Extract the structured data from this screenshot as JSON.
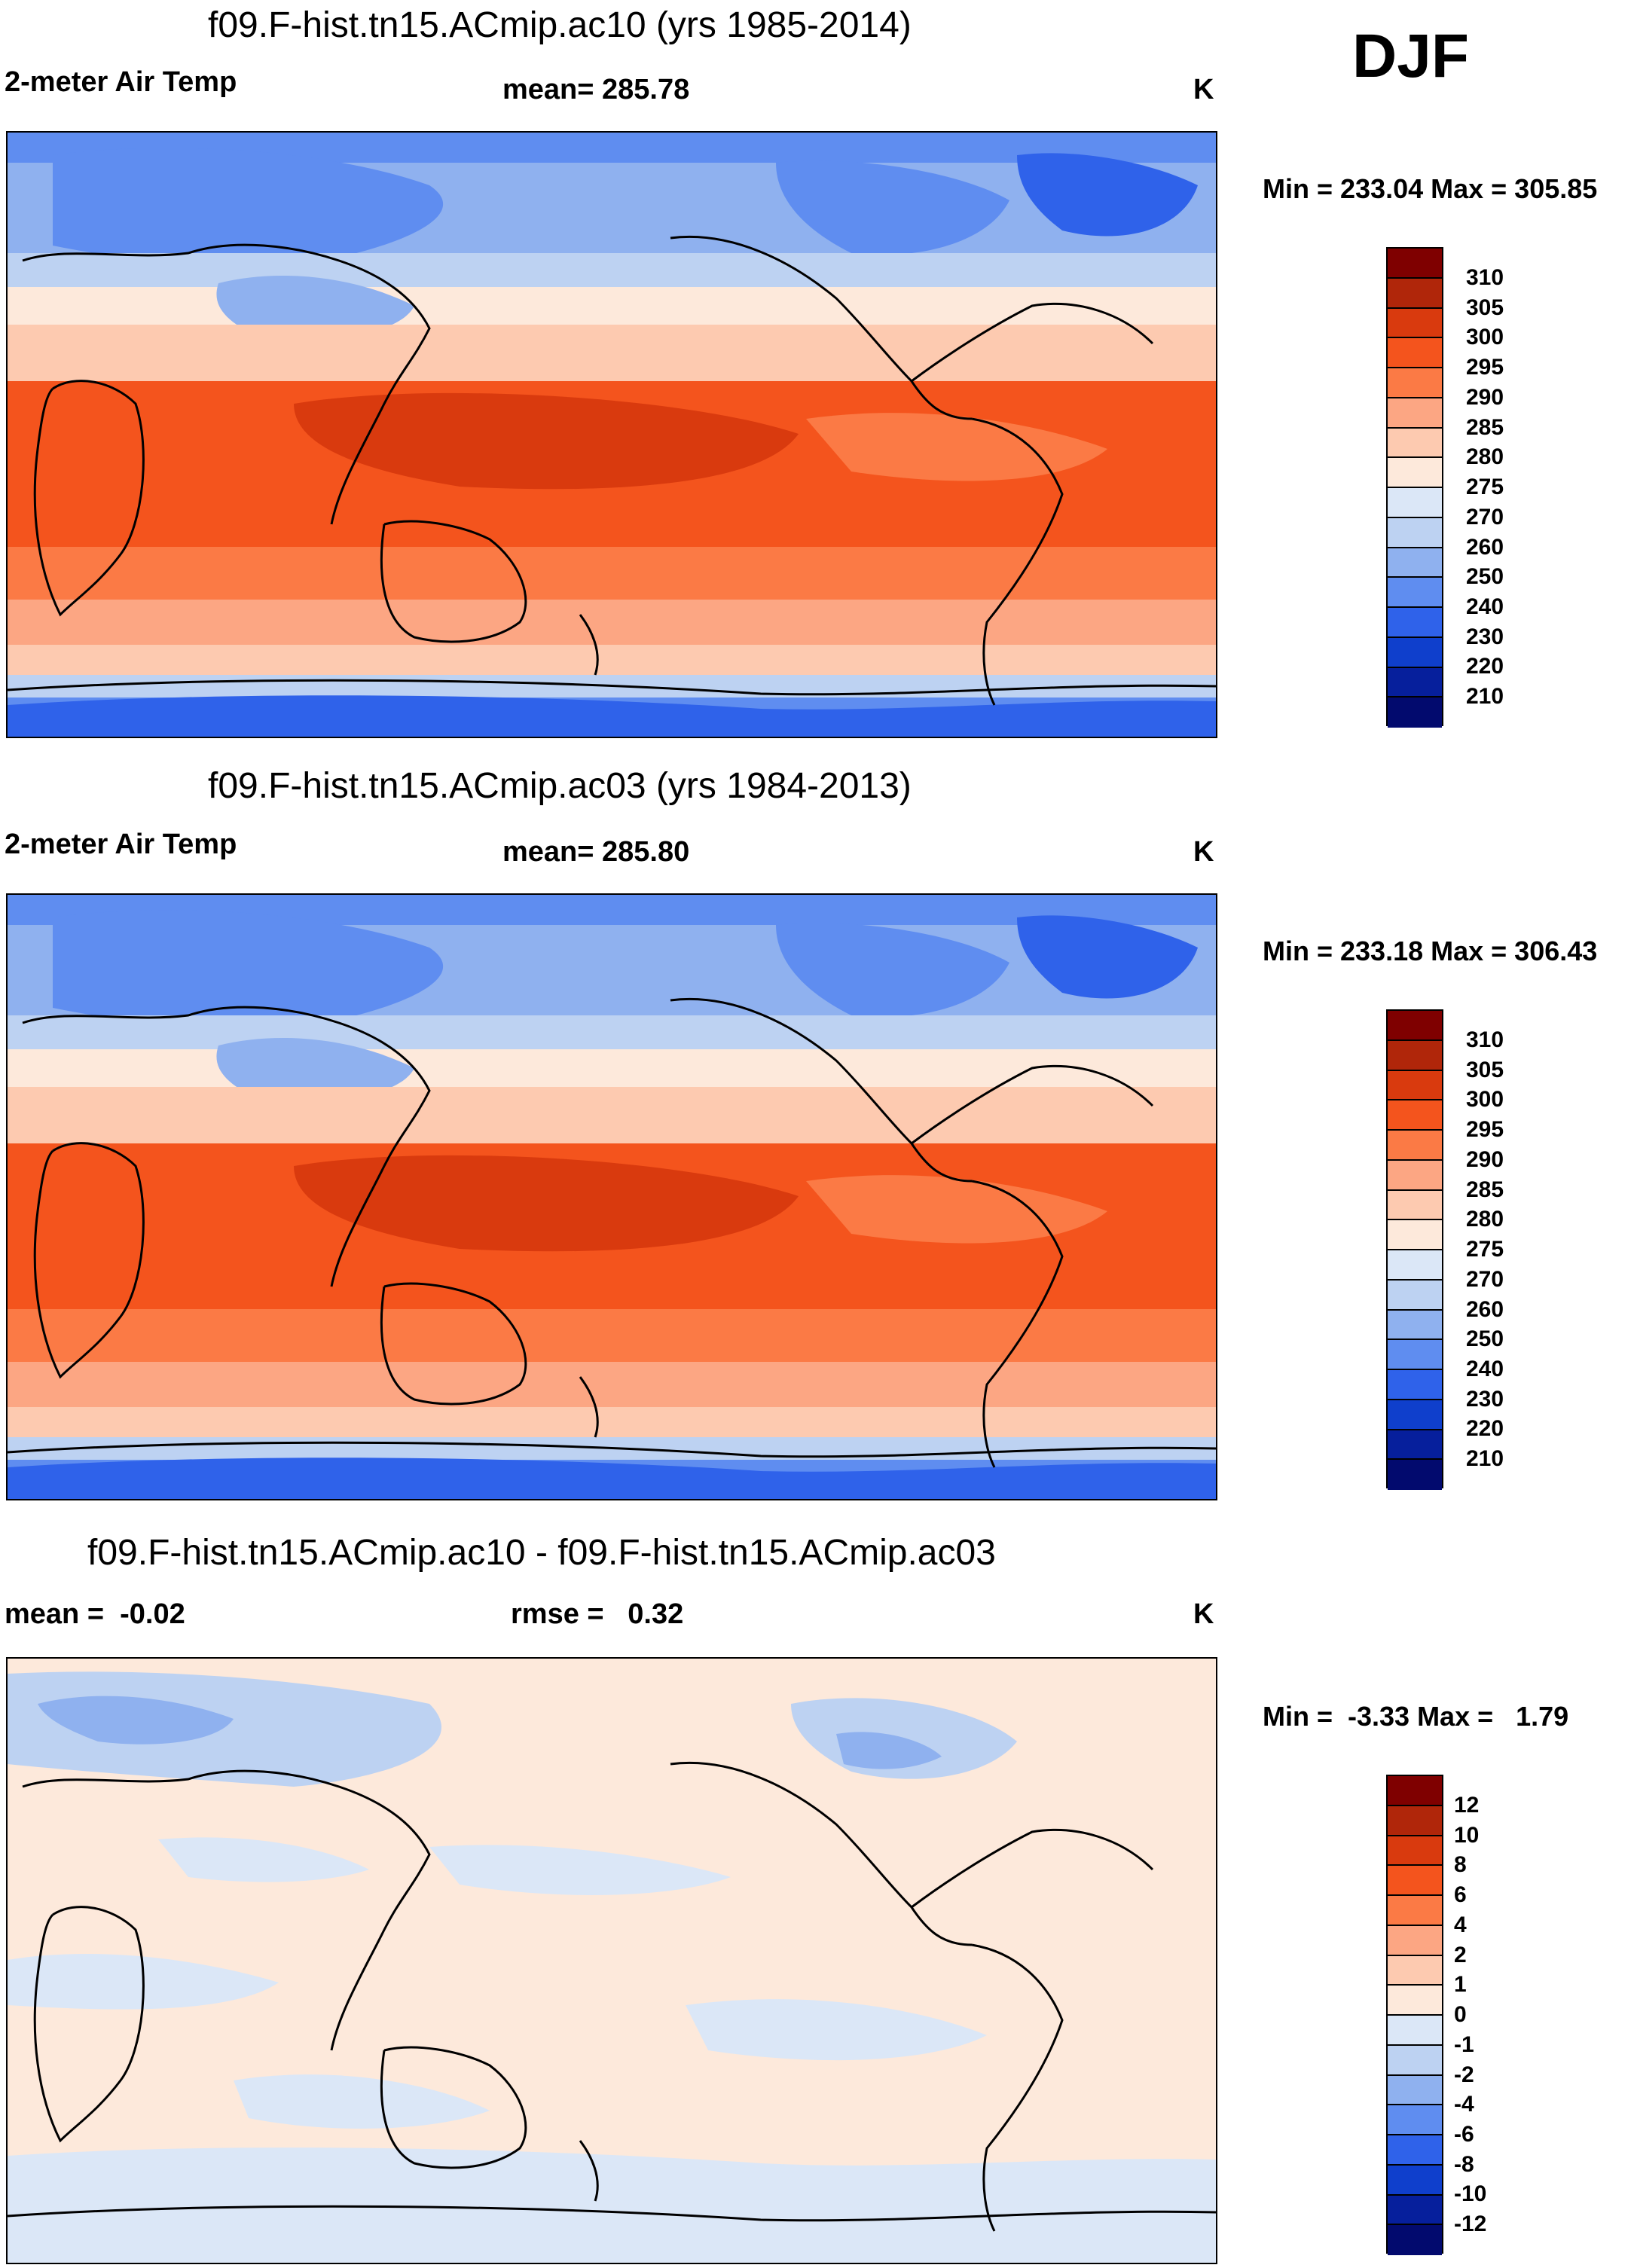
{
  "season": "DJF",
  "panels": [
    {
      "title": "f09.F-hist.tn15.ACmip.ac10 (yrs 1985-2014)",
      "left_label": "2-meter Air Temp",
      "center_label": "mean= 285.78",
      "units": "K",
      "minmax": "Min = 233.04 Max = 305.85",
      "colorbar_labels": [
        "310",
        "305",
        "300",
        "295",
        "290",
        "285",
        "280",
        "275",
        "270",
        "260",
        "250",
        "240",
        "230",
        "220",
        "210"
      ]
    },
    {
      "title": "f09.F-hist.tn15.ACmip.ac03 (yrs 1984-2013)",
      "left_label": "2-meter Air Temp",
      "center_label": "mean= 285.80",
      "units": "K",
      "minmax": "Min = 233.18 Max = 306.43",
      "colorbar_labels": [
        "310",
        "305",
        "300",
        "295",
        "290",
        "285",
        "280",
        "275",
        "270",
        "260",
        "250",
        "240",
        "230",
        "220",
        "210"
      ]
    },
    {
      "title": "f09.F-hist.tn15.ACmip.ac10 - f09.F-hist.tn15.ACmip.ac03",
      "left_label": "mean =  -0.02",
      "center_label": "rmse =   0.32",
      "units": "K",
      "minmax": "Min =  -3.33 Max =   1.79",
      "colorbar_labels": [
        "12",
        "10",
        "8",
        "6",
        "4",
        "2",
        "1",
        "0",
        "-1",
        "-2",
        "-4",
        "-6",
        "-8",
        "-10",
        "-12"
      ]
    }
  ],
  "colors": {
    "absolute_scale": [
      "#7f0000",
      "#b0260a",
      "#d93a0e",
      "#f4541d",
      "#fb7a45",
      "#fca683",
      "#fdcab0",
      "#fde9db",
      "#dbe7f7",
      "#bdd2f2",
      "#8fb1ef",
      "#5f8df0",
      "#2f62ea",
      "#0f3fcc",
      "#061f9c",
      "#020a6e"
    ],
    "difference_scale": [
      "#7f0000",
      "#b0260a",
      "#d93a0e",
      "#f4541d",
      "#fb7a45",
      "#fca683",
      "#fdcab0",
      "#fde9db",
      "#dbe7f7",
      "#bdd2f2",
      "#8fb1ef",
      "#5f8df0",
      "#2f62ea",
      "#0f3fcc",
      "#061f9c",
      "#020a6e"
    ]
  }
}
